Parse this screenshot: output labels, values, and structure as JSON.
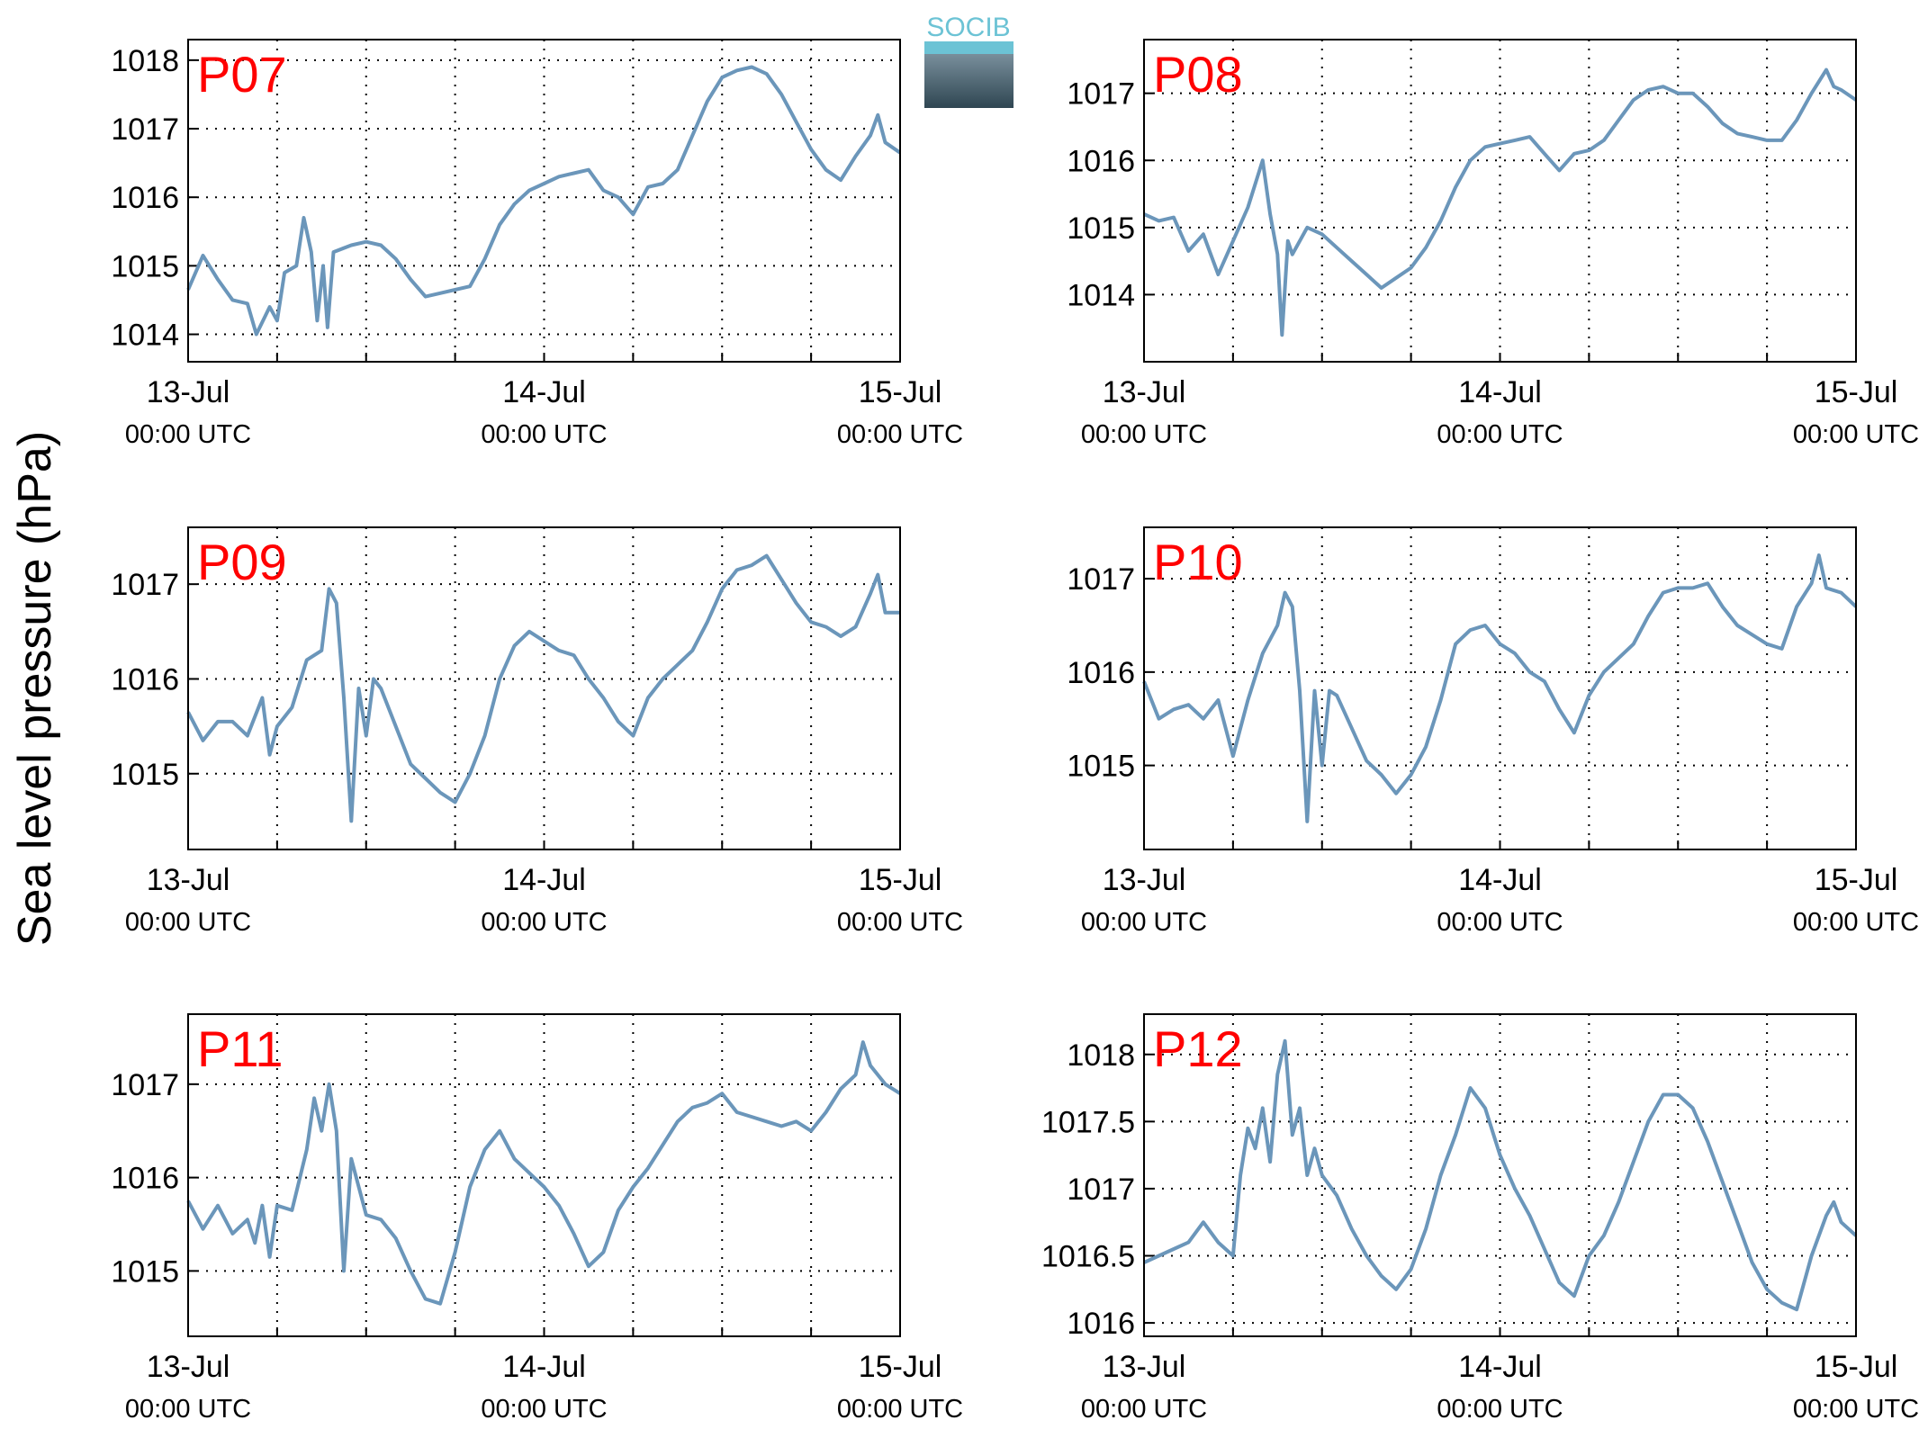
{
  "ylabel": "Sea level pressure (hPa)",
  "logo": "SOCIB",
  "chart_data": [
    {
      "type": "line",
      "title": "P07",
      "color": "#6b96ba",
      "xlim": [
        0,
        48
      ],
      "ylim": [
        1013.6,
        1018.3
      ],
      "yticks": [
        1014,
        1015,
        1016,
        1017,
        1018
      ],
      "grid": true,
      "xticks": [
        {
          "value": 0,
          "label": "13-Jul",
          "sublabel": "00:00 UTC"
        },
        {
          "value": 24,
          "label": "14-Jul",
          "sublabel": "00:00 UTC"
        },
        {
          "value": 48,
          "label": "15-Jul",
          "sublabel": "00:00 UTC"
        }
      ],
      "xminorticks": [
        6,
        12,
        18,
        30,
        36,
        42
      ],
      "x": [
        0,
        1,
        2,
        3,
        4,
        4.6,
        5.5,
        6,
        6.5,
        7.3,
        7.8,
        8.3,
        8.7,
        9.1,
        9.4,
        9.8,
        11,
        12,
        13,
        14,
        15,
        16,
        17,
        18,
        19,
        20,
        21,
        22,
        23,
        24,
        25,
        26,
        27,
        28,
        29,
        30,
        31,
        32,
        33,
        34,
        35,
        36,
        37,
        38,
        39,
        40,
        41,
        42,
        43,
        44,
        45,
        46,
        46.5,
        47,
        48
      ],
      "values": [
        1014.65,
        1015.15,
        1014.8,
        1014.5,
        1014.45,
        1014.0,
        1014.4,
        1014.2,
        1014.9,
        1015.0,
        1015.7,
        1015.2,
        1014.2,
        1015.0,
        1014.1,
        1015.2,
        1015.3,
        1015.35,
        1015.3,
        1015.1,
        1014.8,
        1014.55,
        1014.6,
        1014.65,
        1014.7,
        1015.1,
        1015.6,
        1015.9,
        1016.1,
        1016.2,
        1016.3,
        1016.35,
        1016.4,
        1016.1,
        1016.0,
        1015.75,
        1016.15,
        1016.2,
        1016.4,
        1016.9,
        1017.4,
        1017.75,
        1017.85,
        1017.9,
        1017.8,
        1017.5,
        1017.1,
        1016.7,
        1016.4,
        1016.25,
        1016.6,
        1016.9,
        1017.2,
        1016.8,
        1016.65
      ]
    },
    {
      "type": "line",
      "title": "P08",
      "color": "#6b96ba",
      "xlim": [
        0,
        48
      ],
      "ylim": [
        1013,
        1017.8
      ],
      "yticks": [
        1014,
        1015,
        1016,
        1017
      ],
      "grid": true,
      "xticks": [
        {
          "value": 0,
          "label": "13-Jul",
          "sublabel": "00:00 UTC"
        },
        {
          "value": 24,
          "label": "14-Jul",
          "sublabel": "00:00 UTC"
        },
        {
          "value": 48,
          "label": "15-Jul",
          "sublabel": "00:00 UTC"
        }
      ],
      "xminorticks": [
        6,
        12,
        18,
        30,
        36,
        42
      ],
      "x": [
        0,
        1,
        2,
        3,
        4,
        5,
        6,
        7,
        8,
        8.5,
        9,
        9.3,
        9.7,
        10,
        11,
        12,
        13,
        14,
        15,
        16,
        17,
        18,
        19,
        20,
        21,
        22,
        23,
        24,
        25,
        26,
        27,
        28,
        29,
        30,
        31,
        32,
        33,
        34,
        35,
        36,
        37,
        38,
        39,
        40,
        41,
        42,
        43,
        44,
        45,
        46,
        46.5,
        47,
        48
      ],
      "values": [
        1015.2,
        1015.1,
        1015.15,
        1014.65,
        1014.9,
        1014.3,
        1014.8,
        1015.3,
        1016.0,
        1015.2,
        1014.6,
        1013.4,
        1014.8,
        1014.6,
        1015.0,
        1014.9,
        1014.7,
        1014.5,
        1014.3,
        1014.1,
        1014.25,
        1014.4,
        1014.7,
        1015.1,
        1015.6,
        1016.0,
        1016.2,
        1016.25,
        1016.3,
        1016.35,
        1016.1,
        1015.85,
        1016.1,
        1016.15,
        1016.3,
        1016.6,
        1016.9,
        1017.05,
        1017.1,
        1017.0,
        1017.0,
        1016.8,
        1016.55,
        1016.4,
        1016.35,
        1016.3,
        1016.3,
        1016.6,
        1017.0,
        1017.35,
        1017.1,
        1017.05,
        1016.9
      ]
    },
    {
      "type": "line",
      "title": "P09",
      "color": "#6b96ba",
      "xlim": [
        0,
        48
      ],
      "ylim": [
        1014.2,
        1017.6
      ],
      "yticks": [
        1015,
        1016,
        1017
      ],
      "grid": true,
      "xticks": [
        {
          "value": 0,
          "label": "13-Jul",
          "sublabel": "00:00 UTC"
        },
        {
          "value": 24,
          "label": "14-Jul",
          "sublabel": "00:00 UTC"
        },
        {
          "value": 48,
          "label": "15-Jul",
          "sublabel": "00:00 UTC"
        }
      ],
      "xminorticks": [
        6,
        12,
        18,
        30,
        36,
        42
      ],
      "x": [
        0,
        1,
        2,
        3,
        4,
        5,
        5.5,
        6,
        7,
        8,
        9,
        9.5,
        10,
        10.5,
        11,
        11.5,
        12,
        12.5,
        13,
        14,
        15,
        16,
        17,
        18,
        19,
        20,
        21,
        22,
        23,
        24,
        25,
        26,
        27,
        28,
        29,
        30,
        31,
        32,
        33,
        34,
        35,
        36,
        37,
        38,
        39,
        40,
        41,
        42,
        43,
        44,
        45,
        46,
        46.5,
        47,
        48
      ],
      "values": [
        1015.65,
        1015.35,
        1015.55,
        1015.55,
        1015.4,
        1015.8,
        1015.2,
        1015.5,
        1015.7,
        1016.2,
        1016.3,
        1016.95,
        1016.8,
        1015.8,
        1014.5,
        1015.9,
        1015.4,
        1016.0,
        1015.9,
        1015.5,
        1015.1,
        1014.95,
        1014.8,
        1014.7,
        1015.0,
        1015.4,
        1016.0,
        1016.35,
        1016.5,
        1016.4,
        1016.3,
        1016.25,
        1016.0,
        1015.8,
        1015.55,
        1015.4,
        1015.8,
        1016.0,
        1016.15,
        1016.3,
        1016.6,
        1016.95,
        1017.15,
        1017.2,
        1017.3,
        1017.05,
        1016.8,
        1016.6,
        1016.55,
        1016.45,
        1016.55,
        1016.9,
        1017.1,
        1016.7,
        1016.7
      ]
    },
    {
      "type": "line",
      "title": "P10",
      "color": "#6b96ba",
      "xlim": [
        0,
        48
      ],
      "ylim": [
        1014.1,
        1017.55
      ],
      "yticks": [
        1015,
        1016,
        1017
      ],
      "grid": true,
      "xticks": [
        {
          "value": 0,
          "label": "13-Jul",
          "sublabel": "00:00 UTC"
        },
        {
          "value": 24,
          "label": "14-Jul",
          "sublabel": "00:00 UTC"
        },
        {
          "value": 48,
          "label": "15-Jul",
          "sublabel": "00:00 UTC"
        }
      ],
      "xminorticks": [
        6,
        12,
        18,
        30,
        36,
        42
      ],
      "x": [
        0,
        1,
        2,
        3,
        4,
        5,
        6,
        7,
        8,
        9,
        9.5,
        10,
        10.5,
        11,
        11.5,
        12,
        12.5,
        13,
        14,
        15,
        16,
        17,
        18,
        19,
        20,
        21,
        22,
        23,
        24,
        25,
        26,
        27,
        28,
        29,
        30,
        31,
        32,
        33,
        34,
        35,
        36,
        37,
        38,
        39,
        40,
        41,
        42,
        43,
        44,
        45,
        45.5,
        46,
        47,
        48
      ],
      "values": [
        1015.9,
        1015.5,
        1015.6,
        1015.65,
        1015.5,
        1015.7,
        1015.1,
        1015.7,
        1016.2,
        1016.5,
        1016.85,
        1016.7,
        1015.8,
        1014.4,
        1015.8,
        1015.0,
        1015.8,
        1015.75,
        1015.4,
        1015.05,
        1014.9,
        1014.7,
        1014.9,
        1015.2,
        1015.7,
        1016.3,
        1016.45,
        1016.5,
        1016.3,
        1016.2,
        1016.0,
        1015.9,
        1015.6,
        1015.35,
        1015.75,
        1016.0,
        1016.15,
        1016.3,
        1016.6,
        1016.85,
        1016.9,
        1016.9,
        1016.95,
        1016.7,
        1016.5,
        1016.4,
        1016.3,
        1016.25,
        1016.7,
        1016.95,
        1017.25,
        1016.9,
        1016.85,
        1016.7
      ]
    },
    {
      "type": "line",
      "title": "P11",
      "color": "#6b96ba",
      "xlim": [
        0,
        48
      ],
      "ylim": [
        1014.3,
        1017.75
      ],
      "yticks": [
        1015,
        1016,
        1017
      ],
      "grid": true,
      "xticks": [
        {
          "value": 0,
          "label": "13-Jul",
          "sublabel": "00:00 UTC"
        },
        {
          "value": 24,
          "label": "14-Jul",
          "sublabel": "00:00 UTC"
        },
        {
          "value": 48,
          "label": "15-Jul",
          "sublabel": "00:00 UTC"
        }
      ],
      "xminorticks": [
        6,
        12,
        18,
        30,
        36,
        42
      ],
      "x": [
        0,
        1,
        2,
        3,
        4,
        4.5,
        5,
        5.5,
        6,
        7,
        8,
        8.5,
        9,
        9.5,
        10,
        10.5,
        11,
        12,
        13,
        14,
        15,
        16,
        17,
        18,
        19,
        20,
        21,
        22,
        23,
        24,
        25,
        26,
        27,
        28,
        29,
        30,
        31,
        32,
        33,
        34,
        35,
        36,
        37,
        38,
        39,
        40,
        41,
        42,
        43,
        44,
        45,
        45.5,
        46,
        47,
        48
      ],
      "values": [
        1015.75,
        1015.45,
        1015.7,
        1015.4,
        1015.55,
        1015.3,
        1015.7,
        1015.15,
        1015.7,
        1015.65,
        1016.3,
        1016.85,
        1016.5,
        1017.0,
        1016.5,
        1015.0,
        1016.2,
        1015.6,
        1015.55,
        1015.35,
        1015.0,
        1014.7,
        1014.65,
        1015.2,
        1015.9,
        1016.3,
        1016.5,
        1016.2,
        1016.05,
        1015.9,
        1015.7,
        1015.4,
        1015.05,
        1015.2,
        1015.65,
        1015.9,
        1016.1,
        1016.35,
        1016.6,
        1016.75,
        1016.8,
        1016.9,
        1016.7,
        1016.65,
        1016.6,
        1016.55,
        1016.6,
        1016.5,
        1016.7,
        1016.95,
        1017.1,
        1017.45,
        1017.2,
        1017.0,
        1016.9
      ]
    },
    {
      "type": "line",
      "title": "P12",
      "color": "#6b96ba",
      "xlim": [
        0,
        48
      ],
      "ylim": [
        1015.9,
        1018.3
      ],
      "yticks": [
        1016,
        1016.5,
        1017,
        1017.5,
        1018
      ],
      "grid": true,
      "xticks": [
        {
          "value": 0,
          "label": "13-Jul",
          "sublabel": "00:00 UTC"
        },
        {
          "value": 24,
          "label": "14-Jul",
          "sublabel": "00:00 UTC"
        },
        {
          "value": 48,
          "label": "15-Jul",
          "sublabel": "00:00 UTC"
        }
      ],
      "xminorticks": [
        6,
        12,
        18,
        30,
        36,
        42
      ],
      "x": [
        0,
        1,
        2,
        3,
        4,
        5,
        6,
        6.5,
        7,
        7.5,
        8,
        8.5,
        9,
        9.5,
        10,
        10.5,
        11,
        11.5,
        12,
        13,
        14,
        15,
        16,
        17,
        18,
        19,
        20,
        21,
        22,
        23,
        24,
        25,
        26,
        27,
        28,
        29,
        30,
        31,
        32,
        33,
        34,
        35,
        36,
        37,
        38,
        39,
        40,
        41,
        42,
        43,
        44,
        45,
        46,
        46.5,
        47,
        48
      ],
      "values": [
        1016.45,
        1016.5,
        1016.55,
        1016.6,
        1016.75,
        1016.6,
        1016.5,
        1017.1,
        1017.45,
        1017.3,
        1017.6,
        1017.2,
        1017.85,
        1018.1,
        1017.4,
        1017.6,
        1017.1,
        1017.3,
        1017.1,
        1016.95,
        1016.7,
        1016.5,
        1016.35,
        1016.25,
        1016.4,
        1016.7,
        1017.1,
        1017.4,
        1017.75,
        1017.6,
        1017.25,
        1017.0,
        1016.8,
        1016.55,
        1016.3,
        1016.2,
        1016.5,
        1016.65,
        1016.9,
        1017.2,
        1017.5,
        1017.7,
        1017.7,
        1017.6,
        1017.35,
        1017.05,
        1016.75,
        1016.45,
        1016.25,
        1016.15,
        1016.1,
        1016.5,
        1016.8,
        1016.9,
        1016.75,
        1016.65
      ]
    }
  ]
}
